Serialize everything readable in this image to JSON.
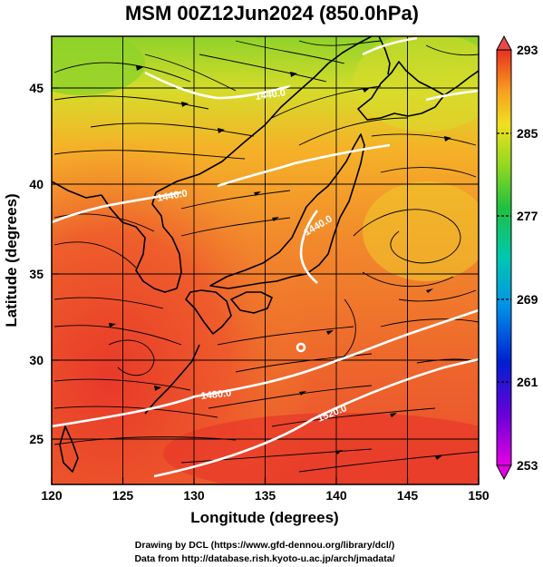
{
  "title": "MSM 00Z12Jun2024 (850.0hPa)",
  "x_axis": {
    "label": "Longitude (degrees)",
    "range": [
      120,
      150
    ],
    "ticks": [
      "120",
      "125",
      "130",
      "135",
      "140",
      "145",
      "150"
    ]
  },
  "y_axis": {
    "label": "Latitude  (degrees)",
    "range": [
      22.4,
      47.6
    ],
    "ticks": [
      "25",
      "30",
      "35",
      "40",
      "45"
    ]
  },
  "colorbar": {
    "range": [
      253,
      293
    ],
    "ticks": [
      "293",
      "285",
      "277",
      "269",
      "261",
      "253"
    ]
  },
  "contours": [
    {
      "label": "1480.0",
      "lon": 130.5,
      "lat": 28.3
    },
    {
      "label": "1520.0",
      "lon": 140.2,
      "lat": 26.8
    },
    {
      "label": "1440.0",
      "lon": 129.5,
      "lat": 39.5
    },
    {
      "label": "1440.0",
      "lon": 138.5,
      "lat": 44.0
    },
    {
      "label": "1440.0",
      "lon": 138.5,
      "lat": 37.5
    }
  ],
  "footer": {
    "line1": "Drawing by DCL (https://www.gfd-dennou.org/library/dcl/)",
    "line2": "Data from http://database.rish.kyoto-u.ac.jp/arch/jmadata/"
  },
  "colors": {
    "warm": "#e8432b",
    "mid": "#f5a623",
    "cool": "#7ed321",
    "contour": "#ffffff",
    "streamline": "#000000"
  }
}
